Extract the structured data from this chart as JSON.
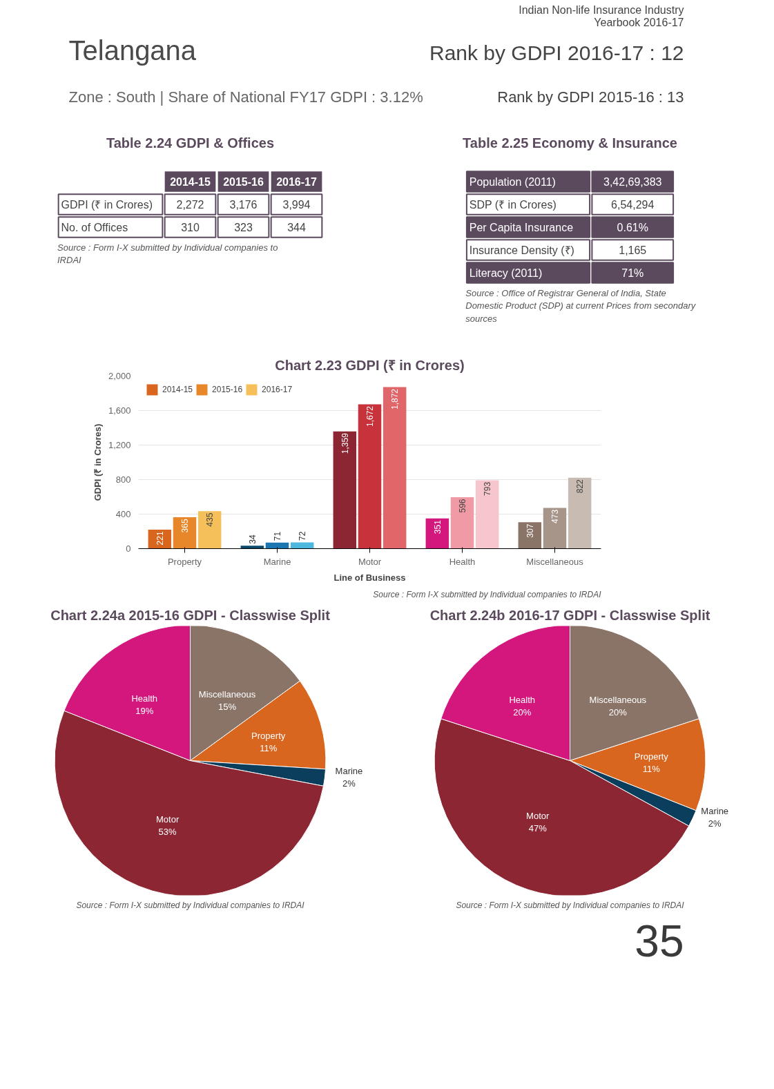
{
  "chart_data": [
    {
      "type": "other",
      "title": "Telangana",
      "subtitle": "Zone : South | Share of National FY17 GDPI : 3.12%",
      "annotations": [
        "Indian Non-life Insurance Industry",
        "Yearbook 2016-17",
        "Rank by GDPI 2016-17 : 12",
        "Rank by GDPI 2015-16 : 13"
      ]
    },
    {
      "type": "other",
      "title": "Table 2.24 GDPI & Offices",
      "categories": [
        null,
        "2014-15",
        "2015-16",
        "2016-17"
      ],
      "y_categories": [
        "GDPI (₹ in Crores)",
        "No. of Offices"
      ],
      "cell_labels": [
        [
          "2,272",
          "3,176",
          "3,994"
        ],
        [
          "310",
          "323",
          "344"
        ]
      ],
      "annotations": [
        "Source : Form I-X submitted by Individual companies to IRDAI"
      ]
    },
    {
      "type": "other",
      "title": "Table 2.25 Economy & Insurance",
      "y_categories": [
        "Population (2011)",
        "SDP (₹ in Crores)",
        "Per Capita Insurance",
        "Insurance Density (₹)",
        "Literacy (2011)"
      ],
      "cell_labels": [
        [
          "3,42,69,383"
        ],
        [
          "6,54,294"
        ],
        [
          "0.61%"
        ],
        [
          "1,165"
        ],
        [
          "71%"
        ]
      ],
      "annotations": [
        "Source : Office of Registrar General of India, State Domestic Product (SDP) at current Prices from secondary sources"
      ]
    },
    {
      "type": "bar",
      "title": "Chart 2.23 GDPI (₹ in Crores)",
      "xlabel": "Line of Business",
      "ylabel": "GDPI (₹ in Crores)",
      "categories": [
        "Property",
        "Marine",
        "Motor",
        "Health",
        "Miscellaneous"
      ],
      "series": [
        {
          "name": "2014-15",
          "colors": [
            "#d9661f",
            "#0b4a6b",
            "#8c2633",
            "#d4177d",
            "#8a7468"
          ],
          "values": [
            221,
            34,
            1359,
            351,
            307
          ],
          "value_labels": [
            "221",
            "34",
            "1,359",
            "351",
            "307"
          ]
        },
        {
          "name": "2015-16",
          "colors": [
            "#e8862a",
            "#1a75b0",
            "#c8323a",
            "#ef9aa5",
            "#a8958a"
          ],
          "values": [
            365,
            71,
            1672,
            596,
            473
          ],
          "value_labels": [
            "365",
            "71",
            "1,672",
            "596",
            "473"
          ]
        },
        {
          "name": "2016-17",
          "colors": [
            "#f5c05a",
            "#4cb8e0",
            "#e0666a",
            "#f7c6cc",
            "#c8bcb2"
          ],
          "values": [
            435,
            72,
            1872,
            793,
            822
          ],
          "value_labels": [
            "435",
            "72",
            "1,872",
            "793",
            "822"
          ]
        }
      ],
      "ylim": [
        0,
        2000
      ],
      "yticks": [
        0,
        400,
        800,
        {
          "value": 1200,
          "label": "1,200"
        },
        {
          "value": 1600,
          "label": "1,600"
        },
        {
          "value": 2000,
          "label": "2,000"
        }
      ],
      "grid": "y",
      "legend": "top left",
      "annotations": [
        "Source : Form I-X submitted by Individual companies to IRDAI"
      ]
    },
    {
      "type": "pie",
      "title": "Chart 2.24a 2015-16 GDPI - Classwise Split",
      "categories": [
        "Miscellaneous",
        "Property",
        "Marine",
        "Motor",
        "Health"
      ],
      "values": [
        15,
        11,
        2,
        53,
        19
      ],
      "value_labels": [
        "15%",
        "11%",
        "2%",
        "53%",
        "19%"
      ],
      "colors": [
        "#8a7468",
        "#d9661f",
        "#0b3d5c",
        "#8c2633",
        "#d4177d"
      ],
      "annotations": [
        "Source : Form I-X submitted by Individual companies to IRDAI"
      ]
    },
    {
      "type": "pie",
      "title": "Chart 2.24b 2016-17 GDPI - Classwise Split",
      "categories": [
        "Miscellaneous",
        "Property",
        "Marine",
        "Motor",
        "Health"
      ],
      "values": [
        20,
        11,
        2,
        47,
        20
      ],
      "value_labels": [
        "20%",
        "11%",
        "2%",
        "47%",
        "20%"
      ],
      "colors": [
        "#8a7468",
        "#d9661f",
        "#0b3d5c",
        "#8c2633",
        "#d4177d"
      ],
      "annotations": [
        "Source : Form I-X submitted by Individual companies to IRDAI"
      ]
    },
    {
      "type": "other",
      "annotations": [
        "35"
      ]
    }
  ]
}
